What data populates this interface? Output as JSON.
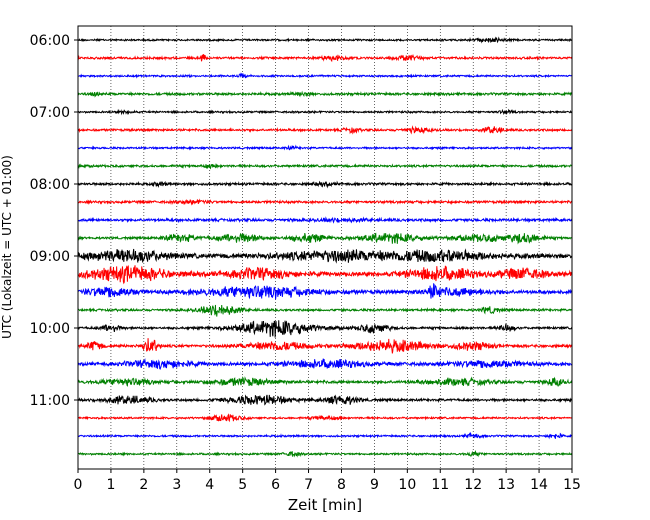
{
  "chart_data": {
    "type": "line",
    "title": "",
    "xlabel": "Zeit  [min]",
    "ylabel": "UTC (Lokalzeit = UTC + 01:00)",
    "xlim": [
      0,
      15
    ],
    "xticks": [
      "0",
      "1",
      "2",
      "3",
      "4",
      "5",
      "6",
      "7",
      "8",
      "9",
      "10",
      "11",
      "12",
      "13",
      "14",
      "15"
    ],
    "grid": "vertical dotted at each minute",
    "legend": "none",
    "yticks": [
      {
        "label": "06:00",
        "trace": 0
      },
      {
        "label": "07:00",
        "trace": 4
      },
      {
        "label": "08:00",
        "trace": 8
      },
      {
        "label": "09:00",
        "trace": 12
      },
      {
        "label": "10:00",
        "trace": 16
      },
      {
        "label": "11:00",
        "trace": 20
      }
    ],
    "colors": [
      "#000000",
      "#ff0000",
      "#0000ff",
      "#008000"
    ],
    "traces": [
      {
        "start": "06:00",
        "base": 1.0,
        "bursts": [
          [
            12.5,
            1.0,
            1.6
          ]
        ]
      },
      {
        "start": "06:15",
        "base": 1.2,
        "bursts": [
          [
            3.8,
            0.15,
            7
          ],
          [
            7.8,
            0.8,
            2.5
          ],
          [
            10.0,
            0.8,
            2.5
          ]
        ]
      },
      {
        "start": "06:30",
        "base": 1.0,
        "bursts": [
          [
            5.0,
            0.3,
            2
          ]
        ]
      },
      {
        "start": "06:45",
        "base": 1.3,
        "bursts": [
          [
            0.5,
            0.3,
            2
          ],
          [
            6.8,
            0.5,
            1.8
          ]
        ]
      },
      {
        "start": "07:00",
        "base": 1.0,
        "bursts": [
          [
            1.5,
            0.5,
            1.5
          ],
          [
            13.0,
            0.5,
            1.5
          ]
        ]
      },
      {
        "start": "07:15",
        "base": 1.2,
        "bursts": [
          [
            8.3,
            0.5,
            2.2
          ],
          [
            10.3,
            0.8,
            2.5
          ],
          [
            12.6,
            0.6,
            3.5
          ]
        ]
      },
      {
        "start": "07:30",
        "base": 1.0,
        "bursts": [
          [
            6.5,
            0.4,
            1.5
          ]
        ]
      },
      {
        "start": "07:45",
        "base": 1.2,
        "bursts": [
          [
            4.0,
            0.5,
            1.5
          ]
        ]
      },
      {
        "start": "08:00",
        "base": 1.3,
        "bursts": [
          [
            2.5,
            0.4,
            2
          ],
          [
            7.5,
            0.8,
            1.5
          ]
        ]
      },
      {
        "start": "08:15",
        "base": 1.3,
        "bursts": [
          [
            3.5,
            1.0,
            1.5
          ]
        ]
      },
      {
        "start": "08:30",
        "base": 1.5,
        "bursts": [
          [
            8.0,
            1.5,
            1.4
          ]
        ]
      },
      {
        "start": "08:45",
        "base": 1.2,
        "bursts": [
          [
            3.1,
            1.0,
            4
          ],
          [
            4.9,
            1.5,
            4.5
          ],
          [
            7.0,
            1.2,
            4.5
          ],
          [
            9.5,
            2.0,
            5
          ],
          [
            12.3,
            2.0,
            3.5
          ],
          [
            13.6,
            1.0,
            5
          ]
        ]
      },
      {
        "start": "09:00",
        "base": 2.5,
        "bursts": [
          [
            1.5,
            2.5,
            6
          ],
          [
            8.0,
            4.0,
            5
          ],
          [
            11.0,
            3.0,
            5
          ]
        ]
      },
      {
        "start": "09:15",
        "base": 2.5,
        "bursts": [
          [
            1.5,
            2.5,
            7.5
          ],
          [
            5.5,
            2.0,
            5
          ],
          [
            11.0,
            2.0,
            6.5
          ],
          [
            13.5,
            1.5,
            5
          ]
        ]
      },
      {
        "start": "09:30",
        "base": 2.0,
        "bursts": [
          [
            1.0,
            1.5,
            5.5
          ],
          [
            5.5,
            3.5,
            6
          ],
          [
            10.8,
            0.4,
            6.5
          ],
          [
            11.5,
            2.0,
            3.5
          ]
        ]
      },
      {
        "start": "09:45",
        "base": 1.2,
        "bursts": [
          [
            4.3,
            1.2,
            6.5
          ],
          [
            12.5,
            0.5,
            3.5
          ]
        ]
      },
      {
        "start": "10:00",
        "base": 1.2,
        "bursts": [
          [
            1.0,
            0.6,
            4
          ],
          [
            6.0,
            2.5,
            8.5
          ],
          [
            9.0,
            1.0,
            5
          ],
          [
            13.0,
            0.5,
            4
          ]
        ]
      },
      {
        "start": "10:15",
        "base": 1.5,
        "bursts": [
          [
            0.5,
            0.5,
            5
          ],
          [
            2.2,
            0.5,
            8
          ],
          [
            6.0,
            2.0,
            4.5
          ],
          [
            9.5,
            2.5,
            6
          ],
          [
            12.0,
            1.2,
            4
          ]
        ]
      },
      {
        "start": "10:30",
        "base": 1.8,
        "bursts": [
          [
            2.5,
            2.0,
            4
          ],
          [
            7.5,
            2.5,
            4
          ],
          [
            12.5,
            2.0,
            4
          ]
        ]
      },
      {
        "start": "10:45",
        "base": 1.6,
        "bursts": [
          [
            1.5,
            1.5,
            3.5
          ],
          [
            5.0,
            2.0,
            3.5
          ],
          [
            11.5,
            2.0,
            3
          ],
          [
            14.5,
            0.5,
            4
          ]
        ]
      },
      {
        "start": "11:00",
        "base": 1.3,
        "bursts": [
          [
            1.5,
            1.5,
            4
          ],
          [
            5.5,
            2.0,
            5
          ],
          [
            8.0,
            1.0,
            5
          ]
        ]
      },
      {
        "start": "11:15",
        "base": 1.0,
        "bursts": [
          [
            4.5,
            1.0,
            3.5
          ],
          [
            7.5,
            0.8,
            2
          ]
        ]
      },
      {
        "start": "11:30",
        "base": 1.0,
        "bursts": [
          [
            12.0,
            0.5,
            2.5
          ],
          [
            14.5,
            0.4,
            3
          ]
        ]
      },
      {
        "start": "11:45",
        "base": 1.0,
        "bursts": [
          [
            6.5,
            0.5,
            2.5
          ],
          [
            12.0,
            0.5,
            1.8
          ]
        ]
      }
    ]
  }
}
